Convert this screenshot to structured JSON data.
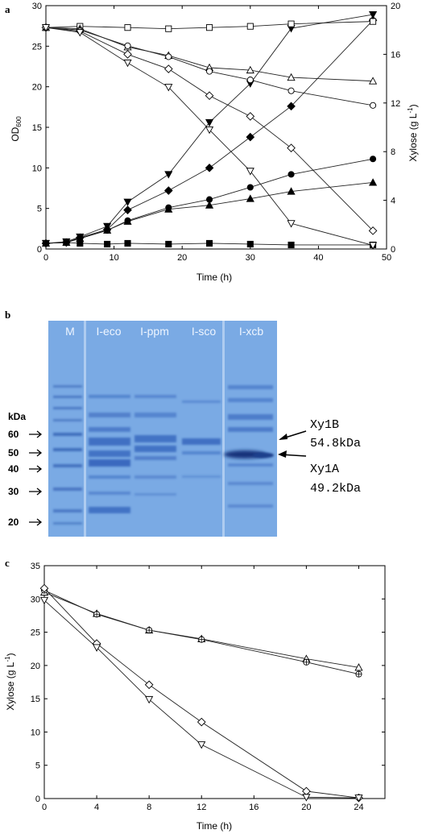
{
  "panel_a": {
    "letter": "a",
    "xlabel": "Time (h)",
    "ylabel_left": "OD",
    "ylabel_left_sub": "600",
    "ylabel_right": "Xylose (g L",
    "ylabel_right_sup": "-1",
    "ylabel_right_end": ")",
    "x_ticks": [
      "0",
      "10",
      "20",
      "30",
      "40",
      "50"
    ],
    "y_left_ticks": [
      "0",
      "5",
      "10",
      "15",
      "20",
      "25",
      "30"
    ],
    "y_right_ticks": [
      "0",
      "4",
      "8",
      "12",
      "16",
      "20"
    ]
  },
  "panel_b": {
    "letter": "b",
    "lanes": [
      "M",
      "I-eco",
      "I-ppm",
      "I-sco",
      "I-xcb"
    ],
    "kda_label": "kDa",
    "markers": [
      "60",
      "50",
      "40",
      "30",
      "20"
    ],
    "band_labels": [
      {
        "name": "Xy1B",
        "size": "54.8kDa"
      },
      {
        "name": "Xy1A",
        "size": "49.2kDa"
      }
    ],
    "colors": {
      "gel_background": "#7aaae4",
      "band": "#3c6fc7",
      "dark_band": "#1b3f8c"
    }
  },
  "panel_c": {
    "letter": "c",
    "xlabel": "Time (h)",
    "ylabel": "Xylose (g L",
    "ylabel_sup": "-1",
    "ylabel_end": ")",
    "x_ticks": [
      "0",
      "4",
      "8",
      "12",
      "16",
      "20",
      "24"
    ],
    "y_ticks": [
      "0",
      "5",
      "10",
      "15",
      "20",
      "25",
      "30",
      "35"
    ]
  },
  "chart_data": [
    {
      "type": "line",
      "panel": "a",
      "xlim": [
        0,
        50
      ],
      "ylim_left": [
        0,
        30
      ],
      "ylim_right": [
        0,
        20
      ],
      "grid": false,
      "series": [
        {
          "axis": "left",
          "marker": "filled-square",
          "x": [
            0,
            3,
            5,
            9,
            12,
            18,
            24,
            30,
            36,
            48
          ],
          "y": [
            0.7,
            0.8,
            0.7,
            0.6,
            0.7,
            0.6,
            0.7,
            0.6,
            0.5,
            0.5
          ]
        },
        {
          "axis": "left",
          "marker": "filled-triangle-down",
          "x": [
            0,
            3,
            5,
            9,
            12,
            18,
            24,
            30,
            36,
            48
          ],
          "y": [
            0.7,
            0.9,
            1.5,
            2.8,
            5.8,
            9.2,
            15.6,
            20.4,
            27.2,
            28.9
          ]
        },
        {
          "axis": "left",
          "marker": "filled-diamond",
          "x": [
            0,
            3,
            5,
            9,
            12,
            18,
            24,
            30,
            36,
            48
          ],
          "y": [
            0.7,
            0.8,
            1.4,
            2.4,
            4.8,
            7.2,
            10.0,
            13.8,
            17.6,
            28.2
          ]
        },
        {
          "axis": "left",
          "marker": "filled-circle",
          "x": [
            0,
            3,
            5,
            9,
            12,
            18,
            24,
            30,
            36,
            48
          ],
          "y": [
            0.7,
            0.8,
            1.3,
            2.3,
            3.5,
            5.1,
            6.1,
            7.6,
            9.2,
            11.1
          ]
        },
        {
          "axis": "left",
          "marker": "filled-triangle-up",
          "x": [
            0,
            3,
            5,
            9,
            12,
            18,
            24,
            30,
            36,
            48
          ],
          "y": [
            0.7,
            0.8,
            1.3,
            2.3,
            3.4,
            4.9,
            5.4,
            6.2,
            7.1,
            8.2
          ]
        },
        {
          "axis": "right",
          "marker": "open-square",
          "x": [
            0,
            5,
            12,
            18,
            24,
            30,
            36,
            48
          ],
          "y": [
            18.2,
            18.3,
            18.2,
            18.1,
            18.2,
            18.3,
            18.5,
            18.7
          ]
        },
        {
          "axis": "right",
          "marker": "open-triangle-up",
          "x": [
            0,
            5,
            12,
            18,
            24,
            30,
            36,
            48
          ],
          "y": [
            18.2,
            18.1,
            16.6,
            15.9,
            14.9,
            14.7,
            14.1,
            13.8
          ]
        },
        {
          "axis": "right",
          "marker": "open-circle",
          "x": [
            0,
            5,
            12,
            18,
            24,
            30,
            36,
            48
          ],
          "y": [
            18.2,
            18.0,
            16.7,
            15.8,
            14.6,
            13.9,
            13.0,
            11.8
          ]
        },
        {
          "axis": "right",
          "marker": "open-diamond",
          "x": [
            0,
            5,
            12,
            18,
            24,
            30,
            36,
            48
          ],
          "y": [
            18.2,
            17.9,
            16.0,
            14.8,
            12.6,
            10.9,
            8.3,
            1.5
          ]
        },
        {
          "axis": "right",
          "marker": "open-triangle-down",
          "x": [
            0,
            5,
            12,
            18,
            24,
            30,
            36,
            48
          ],
          "y": [
            18.2,
            17.8,
            15.3,
            13.3,
            9.8,
            6.4,
            2.1,
            0.3
          ]
        }
      ]
    },
    {
      "type": "line",
      "panel": "c",
      "xlim": [
        0,
        26
      ],
      "ylim": [
        0,
        35
      ],
      "grid": false,
      "series": [
        {
          "marker": "open-triangle-up",
          "x": [
            0,
            4,
            8,
            12,
            20,
            24
          ],
          "y": [
            31.0,
            27.8,
            25.3,
            24.0,
            21.0,
            19.7
          ]
        },
        {
          "marker": "open-circle-cross",
          "x": [
            0,
            4,
            8,
            12,
            20,
            24
          ],
          "y": [
            31.3,
            27.7,
            25.3,
            23.9,
            20.5,
            18.7
          ]
        },
        {
          "marker": "open-diamond",
          "x": [
            0,
            4,
            8,
            12,
            20,
            24
          ],
          "y": [
            31.6,
            23.3,
            17.1,
            11.5,
            1.1,
            0.1
          ]
        },
        {
          "marker": "open-triangle-down",
          "x": [
            0,
            4,
            8,
            12,
            20,
            24
          ],
          "y": [
            29.8,
            22.7,
            14.9,
            8.1,
            0.2,
            0.1
          ]
        }
      ]
    }
  ]
}
